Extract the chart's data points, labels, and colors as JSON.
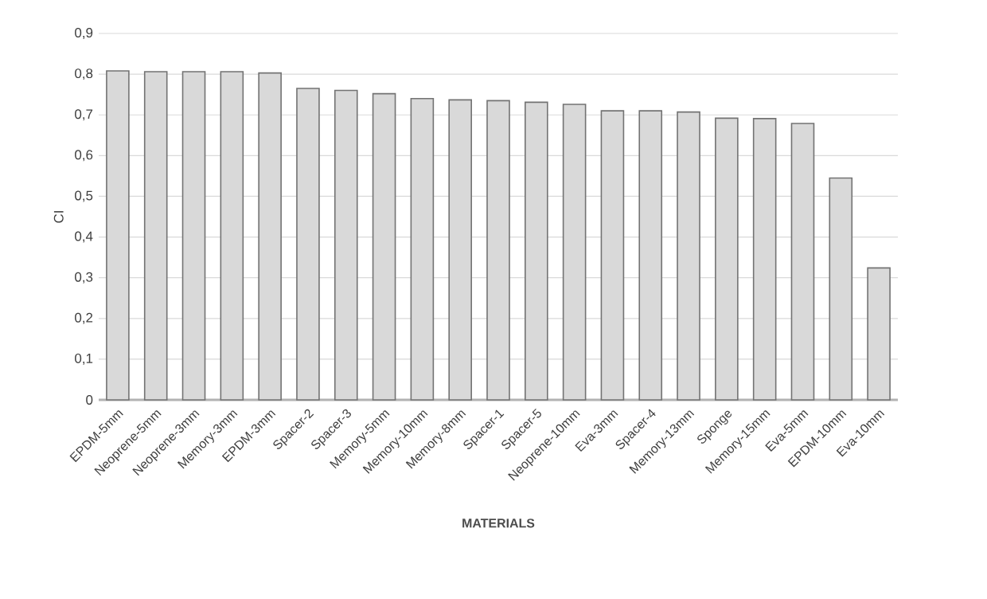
{
  "chart_data": {
    "type": "bar",
    "xlabel": "MATERIALS",
    "ylabel": "CI",
    "categories": [
      "EPDM-5mm",
      "Neoprene-5mm",
      "Neoprene-3mm",
      "Memory-3mm",
      "EPDM-3mm",
      "Spacer-2",
      "Spacer-3",
      "Memory-5mm",
      "Memory-10mm",
      "Memory-8mm",
      "Spacer-1",
      "Spacer-5",
      "Neoprene-10mm",
      "Eva-3mm",
      "Spacer-4",
      "Memory-13mm",
      "Sponge",
      "Memory-15mm",
      "Eva-5mm",
      "EPDM-10mm",
      "Eva-10mm"
    ],
    "values": [
      0.808,
      0.806,
      0.806,
      0.806,
      0.803,
      0.765,
      0.76,
      0.752,
      0.74,
      0.737,
      0.735,
      0.731,
      0.726,
      0.71,
      0.71,
      0.707,
      0.692,
      0.691,
      0.679,
      0.545,
      0.324
    ],
    "color": "#d9d9d9",
    "ylim": [
      0,
      0.9
    ],
    "yticks": [
      {
        "value": 0,
        "label": "0"
      },
      {
        "value": 0.1,
        "label": "0,1"
      },
      {
        "value": 0.2,
        "label": "0,2"
      },
      {
        "value": 0.3,
        "label": "0,3"
      },
      {
        "value": 0.4,
        "label": "0,4"
      },
      {
        "value": 0.5,
        "label": "0,5"
      },
      {
        "value": 0.6,
        "label": "0,6"
      },
      {
        "value": 0.7,
        "label": "0,7"
      },
      {
        "value": 0.8,
        "label": "0,8"
      },
      {
        "value": 0.9,
        "label": "0,9"
      }
    ],
    "grid": "y"
  }
}
